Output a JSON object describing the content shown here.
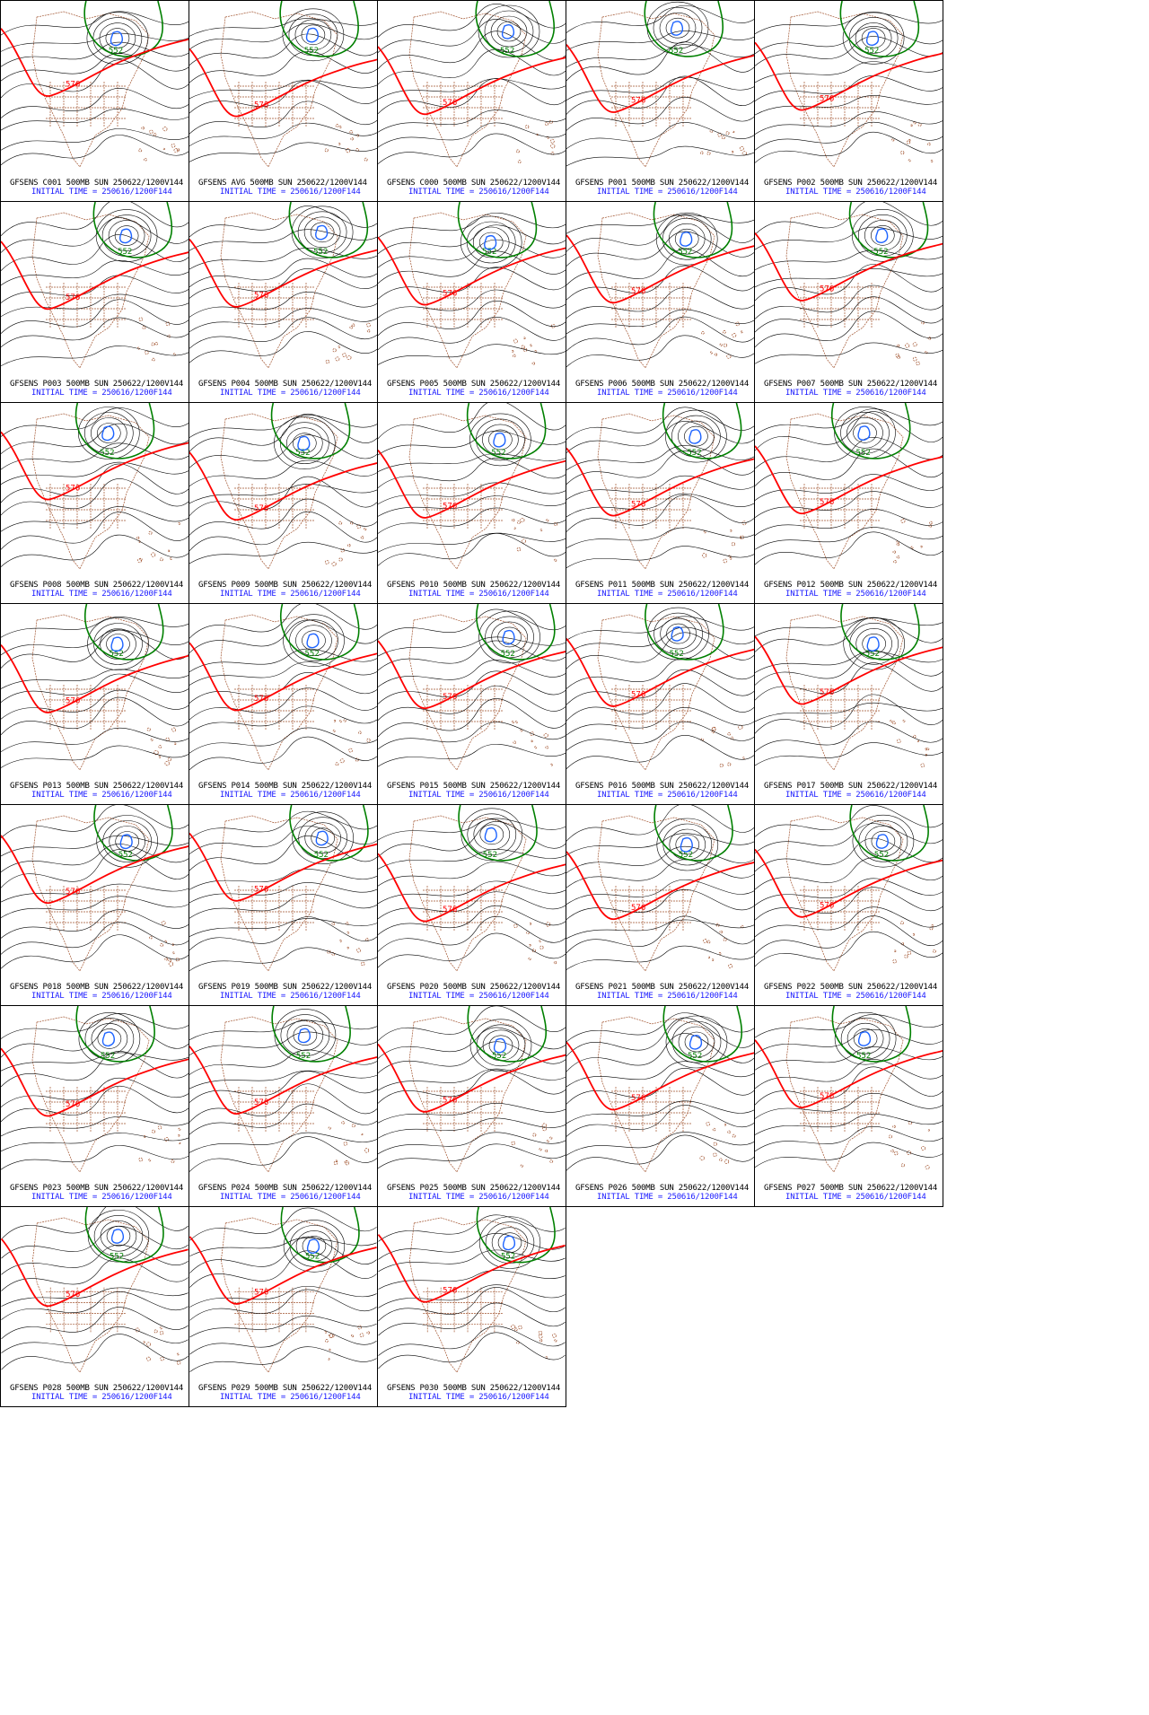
{
  "maps": [
    {
      "title": "GFSENS C001 500MB SUN 250622/1200V144",
      "init": "INITIAL TIME = 250616/1200F144"
    },
    {
      "title": "GFSENS AVG 500MB SUN 250622/1200V144",
      "init": "INITIAL TIME = 250616/1200F144"
    },
    {
      "title": "GFSENS C000 500MB SUN 250622/1200V144",
      "init": "INITIAL TIME = 250616/1200F144"
    },
    {
      "title": "GFSENS P001 500MB SUN 250622/1200V144",
      "init": "INITIAL TIME = 250616/1200F144"
    },
    {
      "title": "GFSENS P002 500MB SUN 250622/1200V144",
      "init": "INITIAL TIME = 250616/1200F144"
    },
    {
      "title": "GFSENS P003 500MB SUN 250622/1200V144",
      "init": "INITIAL TIME = 250616/1200F144"
    },
    {
      "title": "GFSENS P004 500MB SUN 250622/1200V144",
      "init": "INITIAL TIME = 250616/1200F144"
    },
    {
      "title": "GFSENS P005 500MB SUN 250622/1200V144",
      "init": "INITIAL TIME = 250616/1200F144"
    },
    {
      "title": "GFSENS P006 500MB SUN 250622/1200V144",
      "init": "INITIAL TIME = 250616/1200F144"
    },
    {
      "title": "GFSENS P007 500MB SUN 250622/1200V144",
      "init": "INITIAL TIME = 250616/1200F144"
    },
    {
      "title": "GFSENS P008 500MB SUN 250622/1200V144",
      "init": "INITIAL TIME = 250616/1200F144"
    },
    {
      "title": "GFSENS P009 500MB SUN 250622/1200V144",
      "init": "INITIAL TIME = 250616/1200F144"
    },
    {
      "title": "GFSENS P010 500MB SUN 250622/1200V144",
      "init": "INITIAL TIME = 250616/1200F144"
    },
    {
      "title": "GFSENS P011 500MB SUN 250622/1200V144",
      "init": "INITIAL TIME = 250616/1200F144"
    },
    {
      "title": "GFSENS P012 500MB SUN 250622/1200V144",
      "init": "INITIAL TIME = 250616/1200F144"
    },
    {
      "title": "GFSENS P013 500MB SUN 250622/1200V144",
      "init": "INITIAL TIME = 250616/1200F144"
    },
    {
      "title": "GFSENS P014 500MB SUN 250622/1200V144",
      "init": "INITIAL TIME = 250616/1200F144"
    },
    {
      "title": "GFSENS P015 500MB SUN 250622/1200V144",
      "init": "INITIAL TIME = 250616/1200F144"
    },
    {
      "title": "GFSENS P016 500MB SUN 250622/1200V144",
      "init": "INITIAL TIME = 250616/1200F144"
    },
    {
      "title": "GFSENS P017 500MB SUN 250622/1200V144",
      "init": "INITIAL TIME = 250616/1200F144"
    },
    {
      "title": "GFSENS P018 500MB SUN 250622/1200V144",
      "init": "INITIAL TIME = 250616/1200F144"
    },
    {
      "title": "GFSENS P019 500MB SUN 250622/1200V144",
      "init": "INITIAL TIME = 250616/1200F144"
    },
    {
      "title": "GFSENS P020 500MB SUN 250622/1200V144",
      "init": "INITIAL TIME = 250616/1200F144"
    },
    {
      "title": "GFSENS P021 500MB SUN 250622/1200V144",
      "init": "INITIAL TIME = 250616/1200F144"
    },
    {
      "title": "GFSENS P022 500MB SUN 250622/1200V144",
      "init": "INITIAL TIME = 250616/1200F144"
    },
    {
      "title": "GFSENS P023 500MB SUN 250622/1200V144",
      "init": "INITIAL TIME = 250616/1200F144"
    },
    {
      "title": "GFSENS P024 500MB SUN 250622/1200V144",
      "init": "INITIAL TIME = 250616/1200F144"
    },
    {
      "title": "GFSENS P025 500MB SUN 250622/1200V144",
      "init": "INITIAL TIME = 250616/1200F144"
    },
    {
      "title": "GFSENS P026 500MB SUN 250622/1200V144",
      "init": "INITIAL TIME = 250616/1200F144"
    },
    {
      "title": "GFSENS P027 500MB SUN 250622/1200V144",
      "init": "INITIAL TIME = 250616/1200F144"
    },
    {
      "title": "GFSENS P028 500MB SUN 250622/1200V144",
      "init": "INITIAL TIME = 250616/1200F144"
    },
    {
      "title": "GFSENS P029 500MB SUN 250622/1200V144",
      "init": "INITIAL TIME = 250616/1200F144"
    },
    {
      "title": "GFSENS P030 500MB SUN 250622/1200V144",
      "init": "INITIAL TIME = 250616/1200F144"
    }
  ],
  "contour_labels": {
    "green": "552",
    "red": "576"
  },
  "colors": {
    "contour": "#000000",
    "contour_552": "#008000",
    "contour_576": "#ff0000",
    "low_center": "#1e64ff",
    "geography": "#a0522d",
    "caption_title": "#000000",
    "caption_init": "#1a1aff"
  }
}
